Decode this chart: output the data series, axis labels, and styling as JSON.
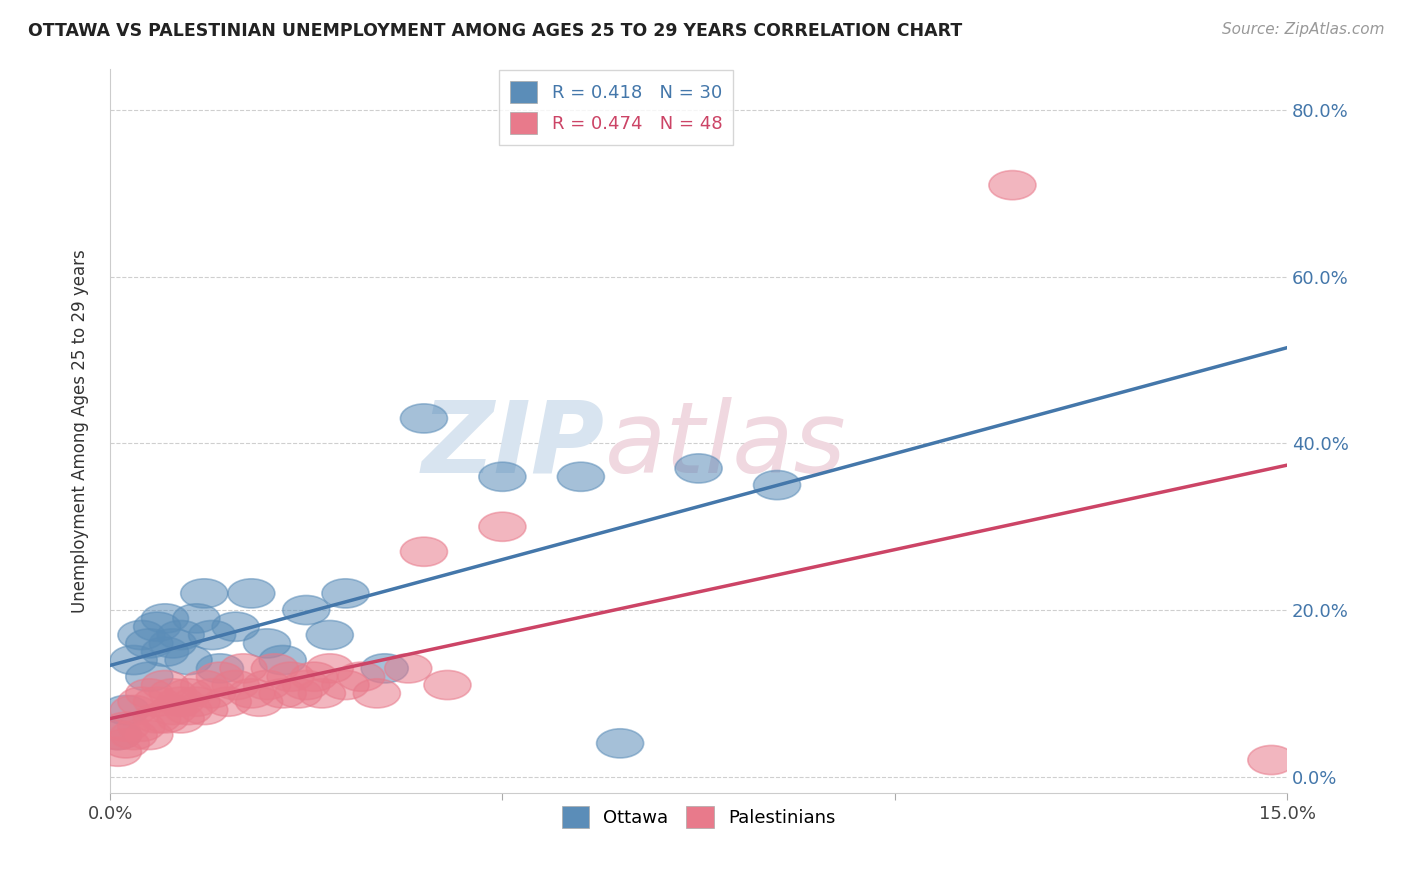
{
  "title": "OTTAWA VS PALESTINIAN UNEMPLOYMENT AMONG AGES 25 TO 29 YEARS CORRELATION CHART",
  "source": "Source: ZipAtlas.com",
  "ylabel": "Unemployment Among Ages 25 to 29 years",
  "xlim": [
    0.0,
    0.15
  ],
  "ylim": [
    -0.02,
    0.85
  ],
  "xticks": [
    0.0,
    0.05,
    0.1,
    0.15
  ],
  "yticks": [
    0.0,
    0.2,
    0.4,
    0.6,
    0.8
  ],
  "xticklabels": [
    "0.0%",
    "",
    "",
    "15.0%"
  ],
  "yticklabels": [
    "0.0%",
    "20.0%",
    "40.0%",
    "60.0%",
    "80.0%"
  ],
  "ottawa_color": "#5B8DB8",
  "ottawa_line_color": "#4477AA",
  "palestinian_color": "#E87A8B",
  "palestinian_line_color": "#CC4466",
  "ottawa_R": 0.418,
  "ottawa_N": 30,
  "palestinian_R": 0.474,
  "palestinian_N": 48,
  "watermark_zip": "ZIP",
  "watermark_atlas": "atlas",
  "background_color": "#ffffff",
  "grid_color": "#bbbbbb",
  "ottawa_x": [
    0.001,
    0.002,
    0.003,
    0.004,
    0.005,
    0.005,
    0.006,
    0.007,
    0.007,
    0.008,
    0.009,
    0.01,
    0.011,
    0.012,
    0.013,
    0.014,
    0.016,
    0.018,
    0.02,
    0.022,
    0.025,
    0.028,
    0.03,
    0.035,
    0.04,
    0.05,
    0.06,
    0.065,
    0.075,
    0.085
  ],
  "ottawa_y": [
    0.05,
    0.08,
    0.14,
    0.17,
    0.12,
    0.16,
    0.18,
    0.15,
    0.19,
    0.16,
    0.17,
    0.14,
    0.19,
    0.22,
    0.17,
    0.13,
    0.18,
    0.22,
    0.16,
    0.14,
    0.2,
    0.17,
    0.22,
    0.13,
    0.43,
    0.36,
    0.36,
    0.04,
    0.37,
    0.35
  ],
  "pal_x": [
    0.001,
    0.001,
    0.002,
    0.002,
    0.003,
    0.003,
    0.004,
    0.004,
    0.005,
    0.005,
    0.006,
    0.006,
    0.007,
    0.007,
    0.008,
    0.008,
    0.009,
    0.009,
    0.01,
    0.01,
    0.011,
    0.012,
    0.012,
    0.013,
    0.014,
    0.015,
    0.016,
    0.017,
    0.018,
    0.019,
    0.02,
    0.021,
    0.022,
    0.023,
    0.024,
    0.025,
    0.026,
    0.027,
    0.028,
    0.03,
    0.032,
    0.034,
    0.038,
    0.04,
    0.043,
    0.05,
    0.115,
    0.148
  ],
  "pal_y": [
    0.05,
    0.03,
    0.06,
    0.04,
    0.05,
    0.08,
    0.06,
    0.09,
    0.05,
    0.1,
    0.07,
    0.09,
    0.07,
    0.11,
    0.08,
    0.1,
    0.07,
    0.09,
    0.08,
    0.1,
    0.09,
    0.11,
    0.08,
    0.1,
    0.12,
    0.09,
    0.11,
    0.13,
    0.1,
    0.09,
    0.11,
    0.13,
    0.1,
    0.12,
    0.1,
    0.11,
    0.12,
    0.1,
    0.13,
    0.11,
    0.12,
    0.1,
    0.13,
    0.27,
    0.11,
    0.3,
    0.71,
    0.02
  ]
}
